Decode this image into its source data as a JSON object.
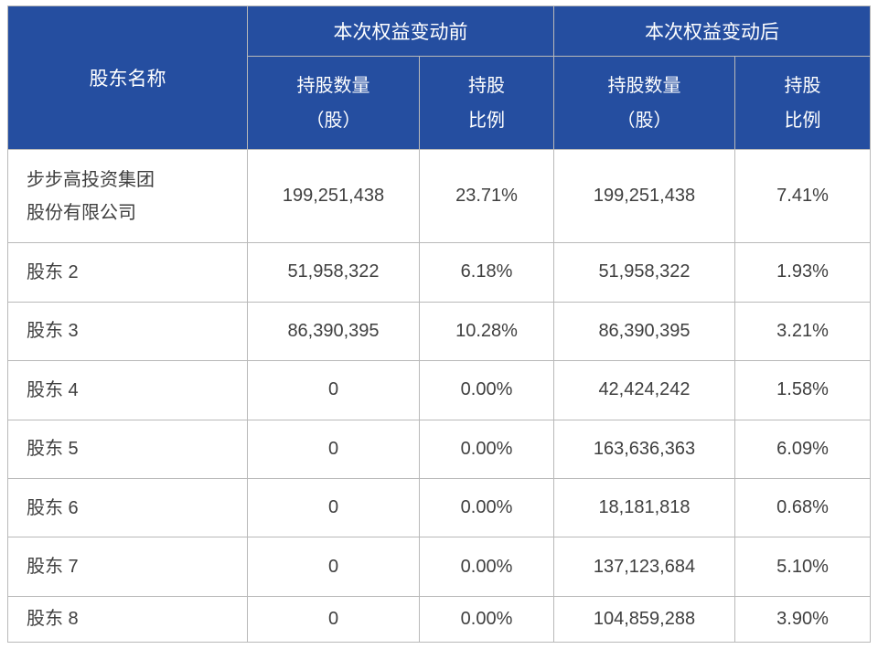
{
  "table": {
    "headers": {
      "shareholder": "股东名称",
      "before_group": "本次权益变动前",
      "after_group": "本次权益变动后",
      "shares_label": "持股数量\n（股）",
      "ratio_label": "持股\n比例"
    },
    "rows": [
      {
        "name": "步步高投资集团\n股份有限公司",
        "before_shares": "199,251,438",
        "before_ratio": "23.71%",
        "after_shares": "199,251,438",
        "after_ratio": "7.41%"
      },
      {
        "name": "股东 2",
        "before_shares": "51,958,322",
        "before_ratio": "6.18%",
        "after_shares": "51,958,322",
        "after_ratio": "1.93%"
      },
      {
        "name": "股东 3",
        "before_shares": "86,390,395",
        "before_ratio": "10.28%",
        "after_shares": "86,390,395",
        "after_ratio": "3.21%"
      },
      {
        "name": "股东 4",
        "before_shares": "0",
        "before_ratio": "0.00%",
        "after_shares": "42,424,242",
        "after_ratio": "1.58%"
      },
      {
        "name": "股东 5",
        "before_shares": "0",
        "before_ratio": "0.00%",
        "after_shares": "163,636,363",
        "after_ratio": "6.09%"
      },
      {
        "name": "股东 6",
        "before_shares": "0",
        "before_ratio": "0.00%",
        "after_shares": "18,181,818",
        "after_ratio": "0.68%"
      },
      {
        "name": "股东 7",
        "before_shares": "0",
        "before_ratio": "0.00%",
        "after_shares": "137,123,684",
        "after_ratio": "5.10%"
      },
      {
        "name": "股东 8",
        "before_shares": "0",
        "before_ratio": "0.00%",
        "after_shares": "104,859,288",
        "after_ratio": "3.90%"
      }
    ],
    "colors": {
      "header_bg": "#254EA0",
      "header_text": "#FFFFFF",
      "body_text": "#3F3F3F",
      "border": "#B9B9B9"
    }
  }
}
